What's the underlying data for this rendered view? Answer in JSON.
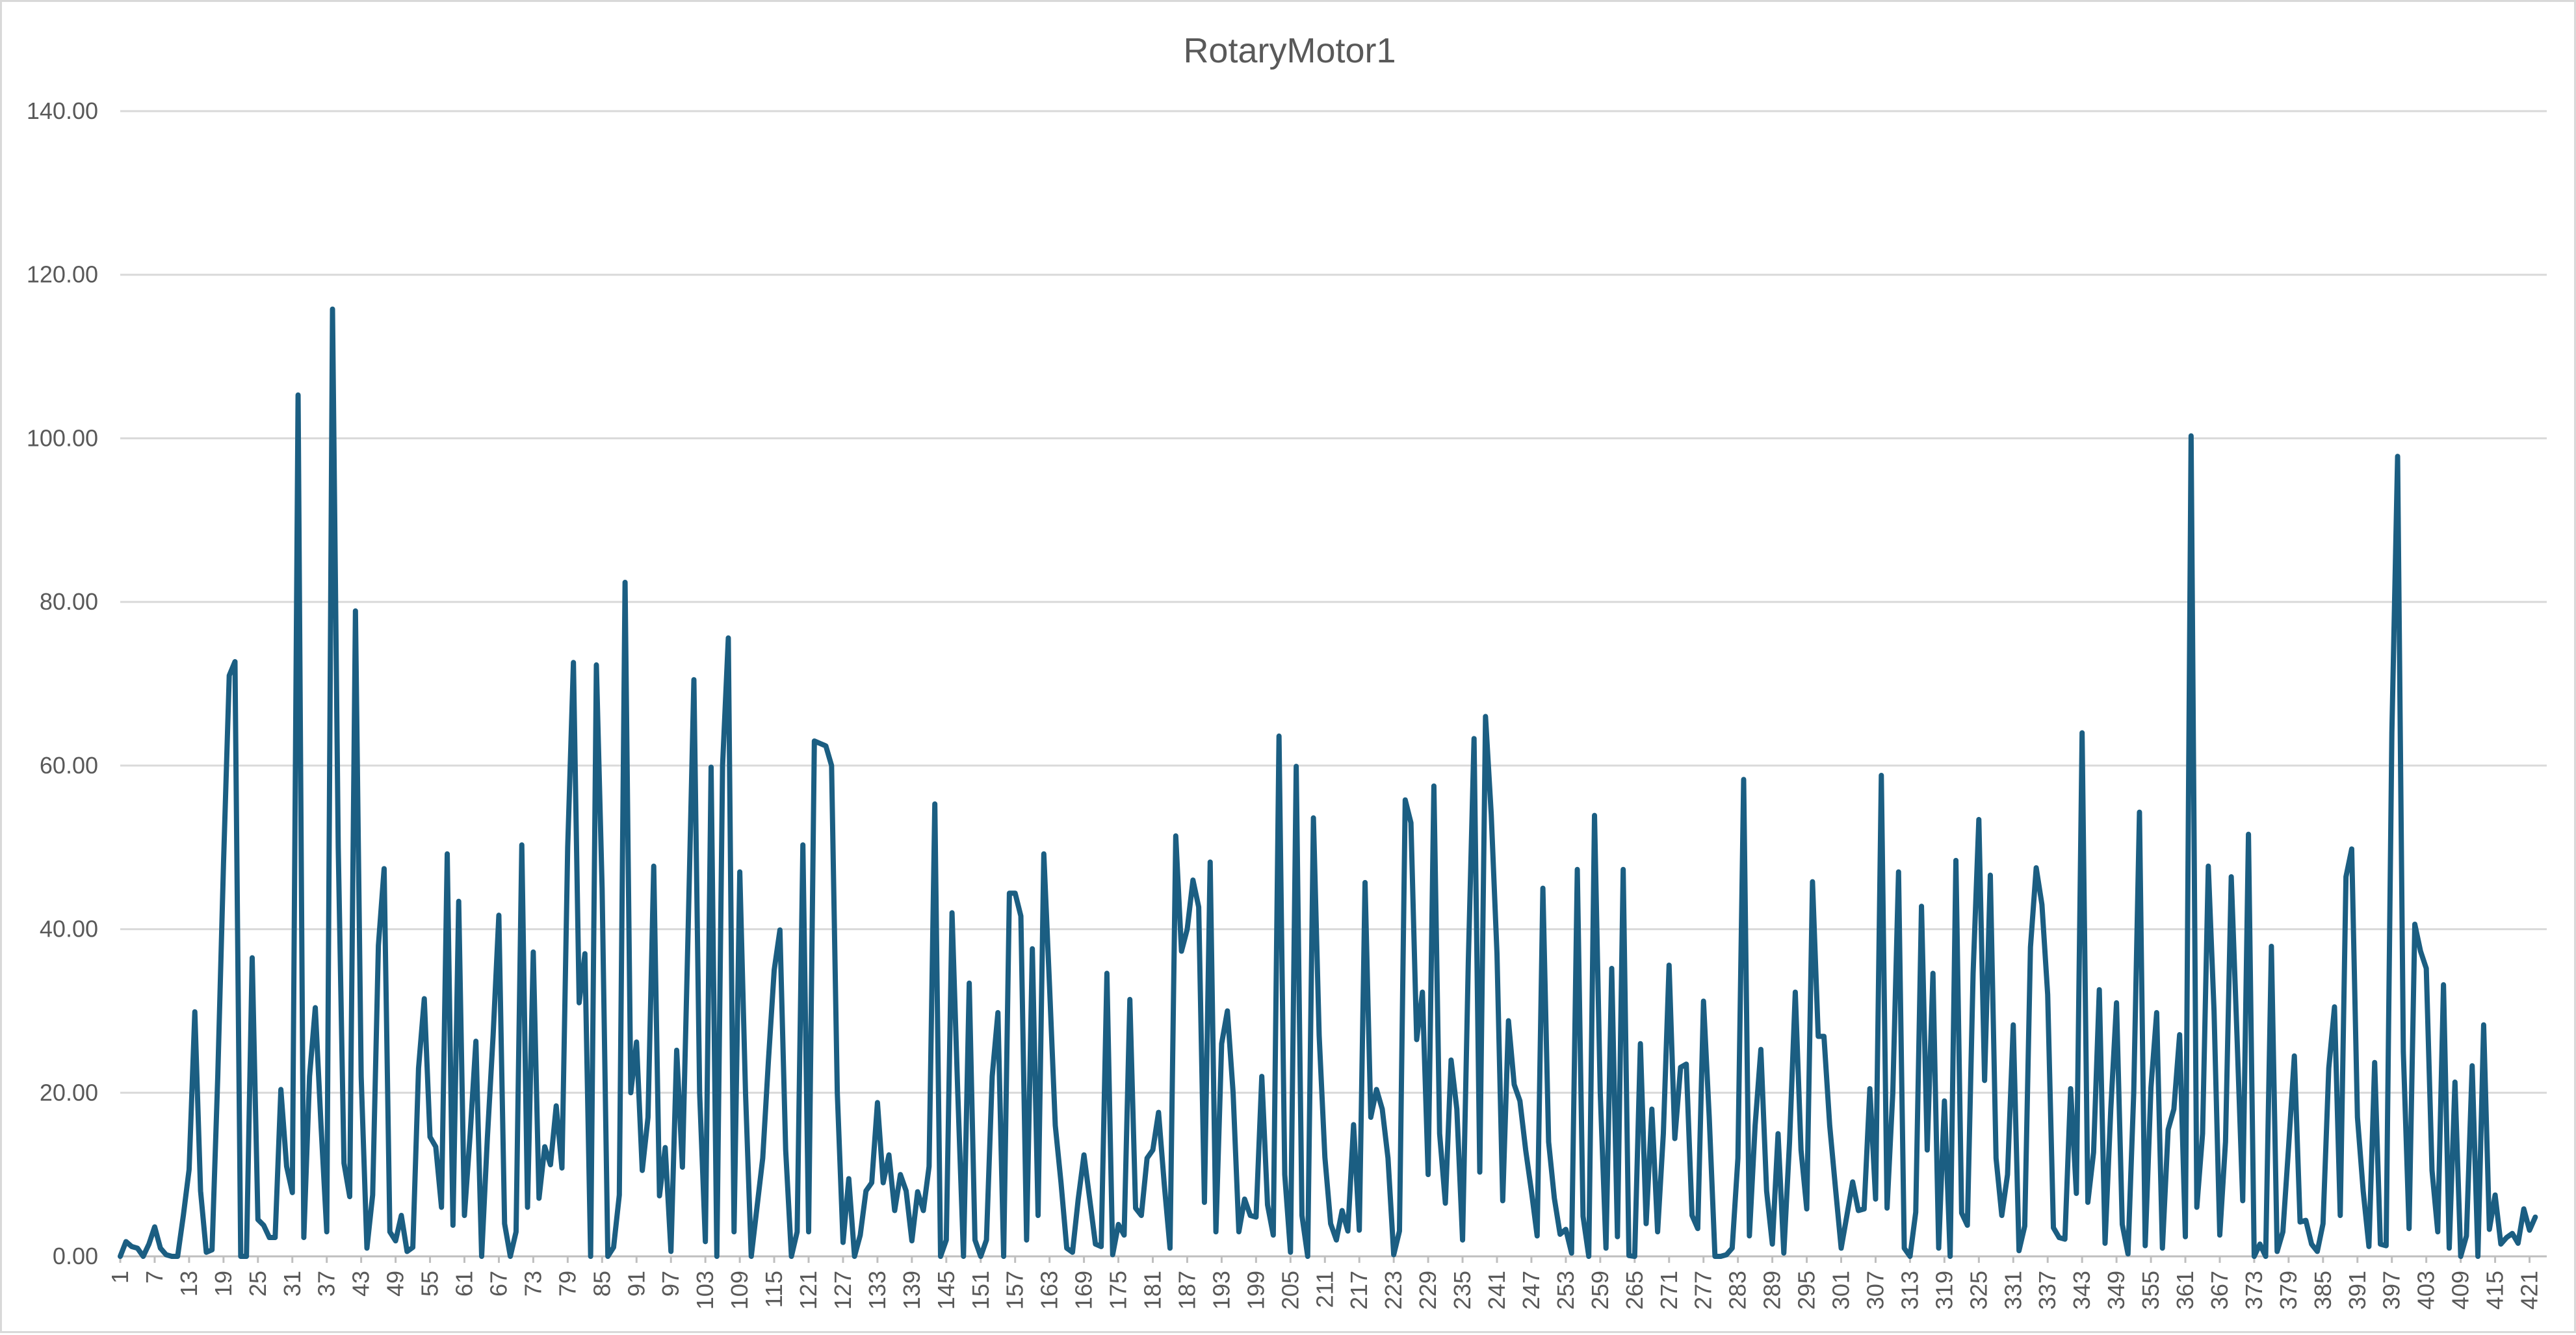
{
  "chart_data": {
    "type": "line",
    "title": "RotaryMotor1",
    "xlabel": "",
    "ylabel": "",
    "ylim": [
      0,
      140
    ],
    "y_ticks": [
      0,
      20,
      40,
      60,
      80,
      100,
      120,
      140
    ],
    "y_tick_format_decimals": 2,
    "x_range": [
      1,
      424
    ],
    "x_tick_start": 1,
    "x_tick_step": 6,
    "x_tick_last": 421,
    "grid": true,
    "legend": "none",
    "series": [
      {
        "color": "#1b5e82",
        "values": [
          0,
          1.8,
          1.2,
          1,
          0,
          1.5,
          3.6,
          1,
          0.2,
          0,
          0,
          5,
          10.6,
          29.9,
          8,
          0.5,
          0.8,
          22,
          48,
          71,
          72.7,
          0,
          0,
          36.5,
          4.5,
          3.8,
          2.3,
          2.3,
          20.4,
          11,
          7.8,
          105.3,
          2.3,
          22,
          30.4,
          16,
          3,
          115.8,
          50,
          11.4,
          7.3,
          78.9,
          22,
          1,
          7.5,
          38,
          47.4,
          3,
          1.9,
          5,
          0.6,
          1.1,
          23,
          31.5,
          14.6,
          13.4,
          6,
          49.2,
          3.8,
          43.4,
          5,
          15,
          26.3,
          0,
          14.5,
          27,
          41.7,
          4,
          0,
          3,
          50.3,
          6,
          37.2,
          7.1,
          13.4,
          11.2,
          18.4,
          10.8,
          50,
          72.6,
          31,
          37,
          0,
          72.3,
          45,
          0,
          1.1,
          7.5,
          82.4,
          20,
          26.2,
          10.5,
          17,
          47.7,
          7.4,
          13.3,
          0.6,
          25.2,
          10.9,
          40,
          70.5,
          20,
          1.8,
          59.8,
          0,
          60,
          75.6,
          3,
          47,
          20,
          0,
          6,
          12,
          24,
          35,
          39.9,
          13,
          0,
          3,
          50.3,
          3,
          63,
          62.7,
          62.4,
          60,
          20,
          1.7,
          9.5,
          0,
          2.6,
          8,
          9,
          18.8,
          9,
          12.4,
          5.6,
          10,
          8,
          1.9,
          7.9,
          5.6,
          11,
          55.3,
          0,
          2,
          42,
          20,
          0,
          33.4,
          2,
          0,
          2,
          22,
          29.8,
          0,
          44.4,
          44.4,
          41.6,
          2,
          37.6,
          5,
          49.2,
          33,
          16,
          9,
          1,
          0.5,
          7,
          12.4,
          7,
          1.5,
          1.2,
          34.6,
          0.2,
          3.9,
          2.6,
          31.4,
          5.9,
          5,
          12,
          13,
          17.6,
          8.8,
          1,
          51.4,
          37.3,
          40,
          46,
          42.7,
          6.6,
          48.2,
          3,
          26,
          30,
          20,
          3,
          7,
          5,
          4.8,
          22,
          6.3,
          2.6,
          63.6,
          10,
          0.5,
          59.9,
          5,
          0,
          53.6,
          27,
          12.1,
          4,
          2,
          5.6,
          3.1,
          16.1,
          3.2,
          45.7,
          17,
          20.4,
          18,
          12,
          0.2,
          3.1,
          55.8,
          53,
          26.5,
          32.3,
          10,
          57.5,
          15,
          6.5,
          24,
          18,
          2,
          36,
          63.3,
          10.3,
          66,
          54,
          37,
          6.8,
          28.8,
          21,
          19,
          13,
          8,
          2.5,
          45,
          14,
          7.1,
          2.7,
          3.3,
          0.4,
          47.3,
          4.9,
          0,
          53.9,
          20,
          1,
          35.2,
          2.4,
          47.3,
          0.1,
          0,
          26,
          4,
          18,
          3,
          15,
          35.6,
          14.4,
          23.1,
          23.5,
          5,
          3.4,
          31.2,
          17,
          0,
          0,
          0.2,
          1,
          12,
          58.3,
          2.5,
          16,
          25.3,
          8,
          1.5,
          15,
          0.4,
          14,
          32.3,
          13,
          5.8,
          45.8,
          26.9,
          26.9,
          16,
          8.4,
          1,
          5,
          9.1,
          5.6,
          5.8,
          20.5,
          7,
          58.8,
          5.9,
          20,
          47,
          1,
          0,
          5.4,
          42.8,
          13,
          34.6,
          1,
          19,
          0,
          48.4,
          5.3,
          3.8,
          34.6,
          53.4,
          21.5,
          46.6,
          12,
          5,
          10,
          28.3,
          0.7,
          3.7,
          37.8,
          47.5,
          43,
          32,
          3.5,
          2.3,
          2.1,
          20.5,
          7.7,
          64,
          6.6,
          12.7,
          32.6,
          1.6,
          18,
          31,
          3.9,
          0.3,
          20,
          54.3,
          1.3,
          20.6,
          29.8,
          1,
          15.5,
          18,
          27.1,
          2.4,
          100.3,
          6,
          15,
          47.7,
          30,
          2.6,
          14,
          46.4,
          27,
          6.8,
          51.6,
          0,
          1.5,
          0,
          37.9,
          0.6,
          3,
          13.4,
          24.5,
          4.2,
          4.4,
          1.5,
          0.6,
          4,
          23,
          30.5,
          5,
          46.4,
          49.8,
          17,
          8,
          1.2,
          23.7,
          1.5,
          1.3,
          64,
          97.8,
          25,
          3.4,
          40.6,
          37.3,
          35.2,
          10.5,
          3,
          33.2,
          1,
          21.3,
          0,
          2.5,
          23.3,
          0,
          28.3,
          3.3,
          7.5,
          1.5,
          2.3,
          2.8,
          1.6,
          5.8,
          3.2,
          4.8
        ]
      }
    ]
  }
}
